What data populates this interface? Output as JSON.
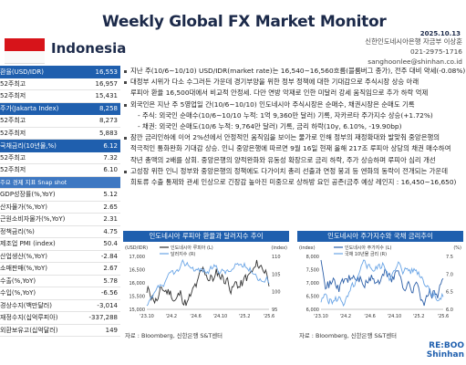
{
  "header": {
    "title": "Weekly Global FX Market Monitor",
    "date": "2025.10.13",
    "country": "Indonesia",
    "contact": [
      "신한인도네시아은행 자금부 이상훈",
      "021-2975-1716",
      "sanghoonlee@shinhan.co.id"
    ]
  },
  "left_table": [
    {
      "label": "환율(USD/IDR)",
      "value": "16,553",
      "highlight": true
    },
    {
      "label": "52주최고",
      "value": "16,957"
    },
    {
      "label": "52주최저",
      "value": "15,431"
    },
    {
      "label": "주가(Jakarta Index)",
      "value": "8,258",
      "highlight": true
    },
    {
      "label": "52주최고",
      "value": "8,273"
    },
    {
      "label": "52주최저",
      "value": "5,883"
    },
    {
      "label": "국채금리(10년물,%)",
      "value": "6.12",
      "highlight": true
    },
    {
      "label": "52주최고",
      "value": "7.32"
    },
    {
      "label": "52주최저",
      "value": "6.10"
    },
    {
      "label": "주요 경제 지표 Snap shot",
      "value": "",
      "snap": true
    },
    {
      "label": "GDP성장률(%,YoY)",
      "value": "5.12"
    },
    {
      "label": "산자물가(%,YoY)",
      "value": "2.65"
    },
    {
      "label": "근원소비자물가(%,YoY)",
      "value": "2.31"
    },
    {
      "label": "정책금리(%)",
      "value": "4.75"
    },
    {
      "label": "제조업 PMI (index)",
      "value": "50.4"
    },
    {
      "label": "산업생산(%,YoY)",
      "value": "-2.84"
    },
    {
      "label": "소매판매(%,YoY)",
      "value": "2.67"
    },
    {
      "label": "수출(%,YoY)",
      "value": "5.78"
    },
    {
      "label": "수입(%,YoY)",
      "value": "-6.56"
    },
    {
      "label": "경상수지(백만달러)",
      "value": "-3,014"
    },
    {
      "label": "재정수지(십억루피아)",
      "value": "-337,288"
    },
    {
      "label": "외환보유고(십억달러)",
      "value": "149"
    }
  ],
  "bullets": [
    {
      "type": "b",
      "text": "지난 주(10/6~10/10) USD/IDR(market rate)는 16,540~16,560흐름(블룸버그 종가), 전주 대비 약세(-0.08%)"
    },
    {
      "type": "b",
      "text": "대정부 시위가 다소 수그러든 가운데 경기부양을 위한 정부 정책에 대한 기대감으로 주식시장 상승 아래"
    },
    {
      "type": "cont",
      "text": "루피아 환율 16,500대에서 비교적 안정세. 다만 연방 악재로 인한 미달러 강세 움직임으로 추가 하락 억제"
    },
    {
      "type": "b",
      "text": "외국인은 지난 주 5영업일 간(10/6~10/10) 인도네시아 주식시장은 순매수, 채권시장은 순매도 기록"
    },
    {
      "type": "sub",
      "text": "- 주식: 외국인 순매수(10/6~10/10 누적: 1억 9,360만 달러) 기록, 자카르타 주가지수 상승(+1.72%)"
    },
    {
      "type": "sub",
      "text": "- 채권: 외국인 순매도(10/6 누적: 9,764만 달러) 기록, 금리 하락(10y, 6.10%, -19.90bp)"
    },
    {
      "type": "b",
      "text": "잠깐 금리인하에 이어 2%선에서 안정적인 움직임을 보이는 물가로 인해 정부의 재정확대와 발맞춰 중앙은행의"
    },
    {
      "type": "cont",
      "text": "적극적인 통화완화 기대감 상승. 인니 중앙은행에 따르면 9월 16일 현재 올해 217조 루피아 상당의 채권 매수하여"
    },
    {
      "type": "cont",
      "text": "작년 총액의 2배를 상회. 중앙은행의 양적완화와 유동성 확장으로 금리 하락, 주가 상승하며 루피아 심리 개선"
    },
    {
      "type": "b",
      "text": "고성장 위한 인니 정부와 중앙은행의 정책에도 다가이치 총리 선출과 연정 붕괴 등 엔화의 동락이 전개되는 가운데"
    },
    {
      "type": "cont",
      "text": "희토류 수출 통제와 관세 인상으로 긴장감 높아진 미중으로 상하방 요인 공존(금주 예상 레인지 : 16,450~16,650)"
    }
  ],
  "chart1": {
    "title": "인도네시아 루피아 환율과 달러지수 추이",
    "left_axis_label": "(USD/IDR)",
    "right_axis_label": "(index)",
    "legend": [
      "인도네시아 루피아 (L)",
      "달러지수 (R)"
    ],
    "source": "자료 : Bloomberg, 신한은행 S&T센터",
    "ticks_x": [
      "'23.10",
      "'24.2",
      "'24.6",
      "'24.10",
      "'25.2",
      "'25.6"
    ],
    "ticks_left": [
      "17,000",
      "16,500",
      "16,000",
      "15,500",
      "15,000"
    ],
    "ticks_right": [
      "110",
      "105",
      "100",
      "95"
    ]
  },
  "chart2": {
    "title": "인도네시아 주가지수와 국채 금리추이",
    "left_axis_label": "(index)",
    "right_axis_label": "(%)",
    "legend": [
      "인도네시아 주가지수 (L)",
      "국채 10년물 금리 (R)"
    ],
    "source": "자료 : Bloomberg, 신한은행 S&T센터",
    "ticks_x": [
      "'23.10",
      "'24.2",
      "'24.6",
      "'24.10",
      "'25.2",
      "'25.6"
    ],
    "ticks_left": [
      "8,000",
      "7,500",
      "7,000",
      "6,500",
      "6,000"
    ],
    "ticks_right": [
      "7.5",
      "7.0",
      "6.5",
      "6.0"
    ]
  },
  "logo": {
    "line1": "RE:BOO",
    "line2": "Shinhan"
  },
  "colors": {
    "accent": "#1f5fae",
    "idr": "#333333",
    "dxy": "#6aa5e6",
    "jci": "#2c5fa8",
    "bond": "#6aa5e6"
  }
}
